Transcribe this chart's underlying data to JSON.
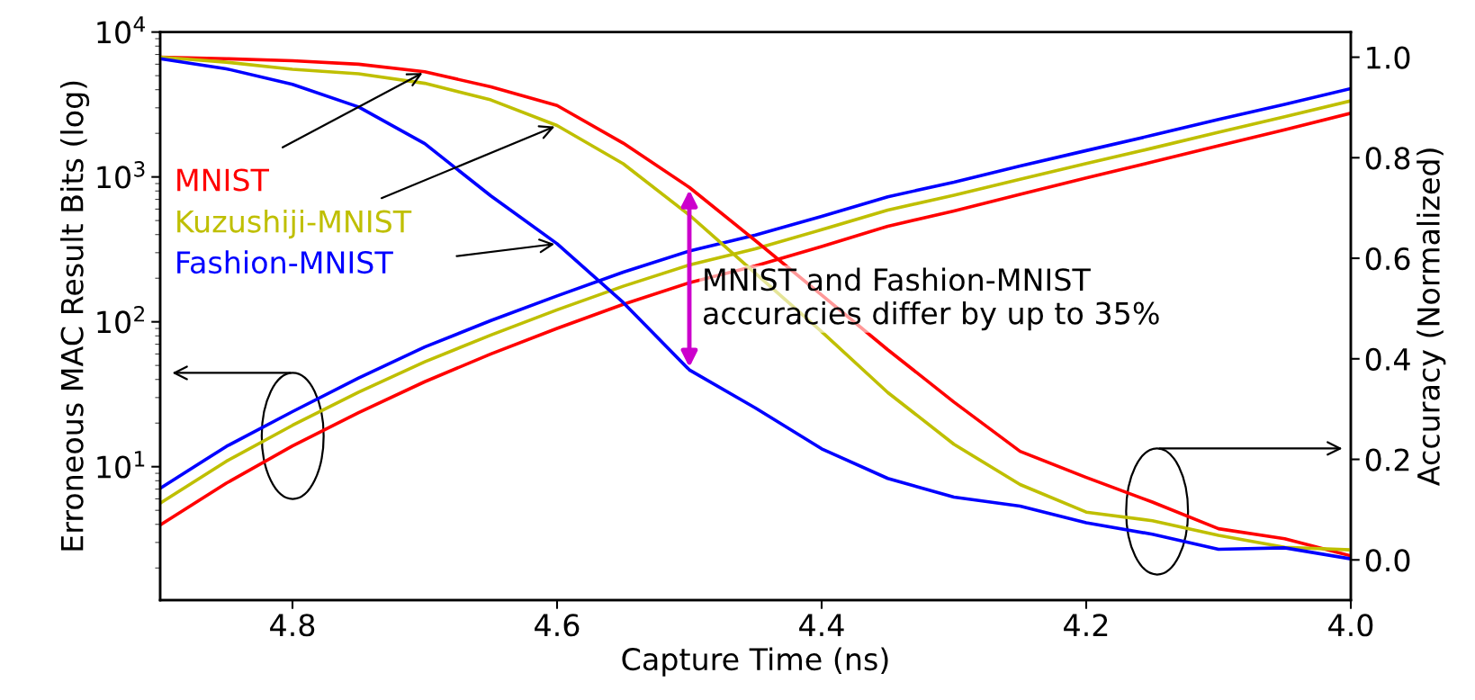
{
  "chart_data": {
    "type": "line",
    "xlabel": "Capture Time (ns)",
    "ylabel": "Erroneous MAC Result Bits (log)",
    "y2label": "Accuracy (Normalized)",
    "x": [
      4.9,
      4.85,
      4.8,
      4.75,
      4.7,
      4.65,
      4.6,
      4.55,
      4.5,
      4.45,
      4.4,
      4.35,
      4.3,
      4.25,
      4.2,
      4.15,
      4.1,
      4.05,
      4.0
    ],
    "xlim": [
      4.9,
      4.0
    ],
    "xticks": [
      {
        "value": 4.8,
        "label": "4.8"
      },
      {
        "value": 4.6,
        "label": "4.6"
      },
      {
        "value": 4.4,
        "label": "4.4"
      },
      {
        "value": 4.2,
        "label": "4.2"
      },
      {
        "value": 4.0,
        "label": "4.0"
      }
    ],
    "log": "y",
    "ylim": [
      1.2,
      10000
    ],
    "yticks": [
      {
        "value": 10,
        "label": "10$^{1}$"
      },
      {
        "value": 100,
        "label": "10$^{2}$"
      },
      {
        "value": 1000,
        "label": "10$^{3}$"
      },
      {
        "value": 10000,
        "label": "10$^{4}$"
      }
    ],
    "y2lim": [
      -0.08,
      1.05
    ],
    "y2ticks": [
      {
        "value": 0,
        "label": "0.0"
      },
      {
        "value": 0.2,
        "label": "0.2"
      },
      {
        "value": 0.4,
        "label": "0.4"
      },
      {
        "value": 0.6,
        "label": "0.6"
      },
      {
        "value": 0.8,
        "label": "0.8"
      },
      {
        "value": 1.0,
        "label": "1.0"
      }
    ],
    "series": [
      {
        "color": "#ff0000",
        "values": [
          3.96,
          7.7,
          13.9,
          23.6,
          38.6,
          60,
          90,
          132,
          186,
          243,
          331,
          457,
          583,
          759,
          984,
          1268,
          1644,
          2118,
          2754
        ]
      },
      {
        "color": "#bfbf00",
        "values": [
          5.6,
          10.9,
          19.3,
          32.7,
          53,
          81,
          121,
          176,
          247,
          319,
          432,
          590,
          748,
          964,
          1239,
          1581,
          2037,
          2600,
          3350
        ]
      },
      {
        "color": "#0000ff",
        "values": [
          7.1,
          13.8,
          24,
          41,
          67,
          102,
          151,
          220,
          308,
          397,
          535,
          730,
          920,
          1190,
          1520,
          1940,
          2490,
          3170,
          4070
        ]
      },
      {
        "name": "MNIST",
        "color": "#ff0000",
        "axis": "y2",
        "values": [
          1.0,
          0.997,
          0.993,
          0.986,
          0.971,
          0.941,
          0.904,
          0.829,
          0.741,
          0.635,
          0.527,
          0.418,
          0.314,
          0.216,
          0.164,
          0.115,
          0.062,
          0.042,
          0.008
        ]
      },
      {
        "name": "Kuzushiji-MNIST",
        "color": "#bfbf00",
        "axis": "y2",
        "values": [
          1.0,
          0.99,
          0.976,
          0.967,
          0.948,
          0.915,
          0.864,
          0.788,
          0.686,
          0.57,
          0.454,
          0.333,
          0.23,
          0.15,
          0.095,
          0.078,
          0.049,
          0.025,
          0.02
        ]
      },
      {
        "name": "Fashion-MNIST",
        "color": "#0000ff",
        "axis": "y2",
        "values": [
          0.997,
          0.977,
          0.946,
          0.901,
          0.828,
          0.724,
          0.629,
          0.512,
          0.378,
          0.302,
          0.221,
          0.162,
          0.125,
          0.107,
          0.074,
          0.051,
          0.021,
          0.024,
          0.002
        ]
      }
    ],
    "annotations": [
      "MNIST and Fashion-MNIST\naccuracies differ by up to 35%"
    ],
    "grid": false,
    "legend": false,
    "marker": "none",
    "line_style": "solid"
  }
}
